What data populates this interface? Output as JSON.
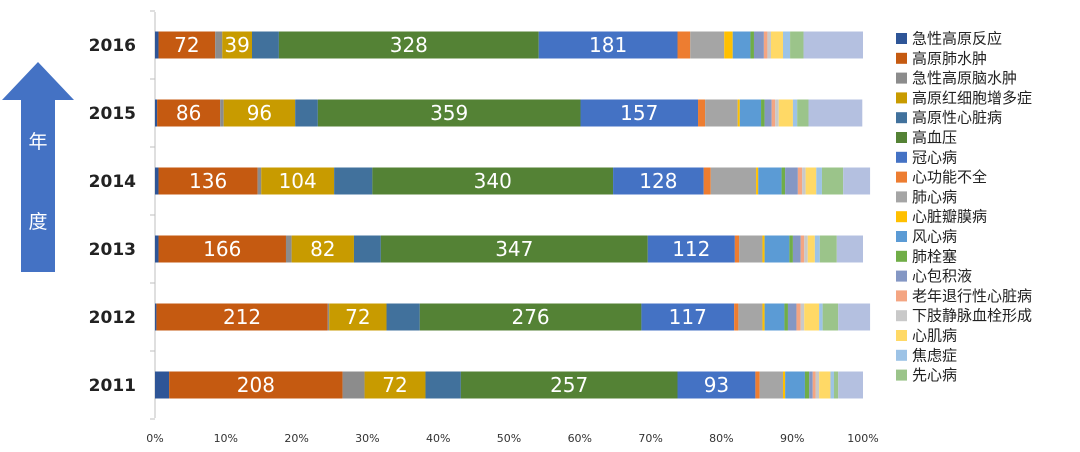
{
  "chart_data": {
    "type": "bar",
    "orientation": "horizontal",
    "stacked": "percent",
    "axis_label_vertical": "年度",
    "x_ticks": [
      "0%",
      "10%",
      "20%",
      "30%",
      "40%",
      "50%",
      "60%",
      "70%",
      "80%",
      "90%",
      "100%"
    ],
    "xlim": [
      0,
      100
    ],
    "legend_position": "right",
    "categories": [
      "2016",
      "2015",
      "2014",
      "2013",
      "2012",
      "2011"
    ],
    "series": [
      {
        "name": "急性高原反应",
        "color": "#2e5597",
        "percent": [
          0.5,
          0.3,
          0.5,
          0.5,
          0.2,
          2.0
        ],
        "labels": [
          null,
          null,
          null,
          null,
          null,
          null
        ]
      },
      {
        "name": "高原肺水肿",
        "color": "#c55a11",
        "percent": [
          8.0,
          8.9,
          14.0,
          18.0,
          24.2,
          24.5
        ],
        "labels": [
          "72",
          "86",
          "136",
          "166",
          "212",
          "208"
        ]
      },
      {
        "name": "急性高原脑水肿",
        "color": "#8c8c8c",
        "percent": [
          1.0,
          0.5,
          0.5,
          0.8,
          0.2,
          3.1
        ],
        "labels": [
          null,
          null,
          null,
          null,
          null,
          null
        ]
      },
      {
        "name": "高原红细胞增多症",
        "color": "#c89b00",
        "percent": [
          4.2,
          10.1,
          10.3,
          8.8,
          8.1,
          8.6
        ],
        "labels": [
          "39",
          "96",
          "104",
          "82",
          "72",
          "72"
        ]
      },
      {
        "name": "高原性心脏病",
        "color": "#41719c",
        "percent": [
          3.8,
          3.2,
          5.4,
          3.8,
          4.7,
          5.0
        ],
        "labels": [
          null,
          null,
          null,
          null,
          null,
          null
        ]
      },
      {
        "name": "高血压",
        "color": "#548235",
        "percent": [
          36.7,
          37.1,
          34.0,
          37.7,
          31.3,
          30.6
        ],
        "labels": [
          "328",
          "359",
          "340",
          "347",
          "276",
          "257"
        ]
      },
      {
        "name": "冠心病",
        "color": "#4472c4",
        "percent": [
          19.6,
          16.6,
          12.8,
          12.3,
          13.1,
          11.0
        ],
        "labels": [
          "181",
          "157",
          "128",
          "112",
          "117",
          "93"
        ]
      },
      {
        "name": "心功能不全",
        "color": "#ed7d31",
        "percent": [
          1.8,
          1.0,
          1.0,
          0.6,
          0.6,
          0.6
        ],
        "labels": [
          null,
          null,
          null,
          null,
          null,
          null
        ]
      },
      {
        "name": "肺心病",
        "color": "#a5a5a5",
        "percent": [
          4.8,
          4.6,
          6.4,
          3.3,
          3.4,
          3.3
        ],
        "labels": [
          null,
          null,
          null,
          null,
          null,
          null
        ]
      },
      {
        "name": "心脏瓣膜病",
        "color": "#ffc000",
        "percent": [
          1.2,
          0.3,
          0.3,
          0.3,
          0.3,
          0.3
        ],
        "labels": [
          null,
          null,
          null,
          null,
          null,
          null
        ]
      },
      {
        "name": "风心病",
        "color": "#5b9bd5",
        "percent": [
          2.5,
          3.0,
          3.3,
          3.5,
          2.8,
          2.8
        ],
        "labels": [
          null,
          null,
          null,
          null,
          null,
          null
        ]
      },
      {
        "name": "肺栓塞",
        "color": "#70ad47",
        "percent": [
          0.5,
          0.5,
          0.5,
          0.5,
          0.5,
          0.6
        ],
        "labels": [
          null,
          null,
          null,
          null,
          null,
          null
        ]
      },
      {
        "name": "心包积液",
        "color": "#8497c4",
        "percent": [
          1.4,
          1.0,
          1.8,
          1.1,
          1.2,
          0.5
        ],
        "labels": [
          null,
          null,
          null,
          null,
          null,
          null
        ]
      },
      {
        "name": "老年退行性心脏病",
        "color": "#f4a582",
        "percent": [
          0.5,
          0.5,
          0.6,
          0.5,
          0.6,
          0.4
        ],
        "labels": [
          null,
          null,
          null,
          null,
          null,
          null
        ]
      },
      {
        "name": "下肢静脉血栓形成",
        "color": "#c9c9c9",
        "percent": [
          0.5,
          0.5,
          0.5,
          0.5,
          0.5,
          0.5
        ],
        "labels": [
          null,
          null,
          null,
          null,
          null,
          null
        ]
      },
      {
        "name": "心肌病",
        "color": "#ffd966",
        "percent": [
          1.7,
          2.0,
          1.5,
          1.0,
          2.1,
          1.6
        ],
        "labels": [
          null,
          null,
          null,
          null,
          null,
          null
        ]
      },
      {
        "name": "焦虑症",
        "color": "#9dc3e6",
        "percent": [
          1.0,
          0.6,
          0.8,
          0.7,
          0.5,
          0.5
        ],
        "labels": [
          null,
          null,
          null,
          null,
          null,
          null
        ]
      },
      {
        "name": "先心病",
        "color": "#9bc48a",
        "percent": [
          1.9,
          1.6,
          3.0,
          2.4,
          2.2,
          0.6
        ],
        "labels": [
          null,
          null,
          null,
          null,
          null,
          null
        ]
      },
      {
        "name": "",
        "color": "#b4c0e0",
        "percent": [
          8.4,
          7.6,
          3.8,
          3.7,
          4.5,
          3.5
        ],
        "labels": [
          null,
          null,
          null,
          null,
          null,
          null
        ]
      }
    ]
  },
  "colors": {
    "arrow": "#4472c4",
    "axis": "#bfbfbf",
    "label_text": "#ffffff"
  }
}
